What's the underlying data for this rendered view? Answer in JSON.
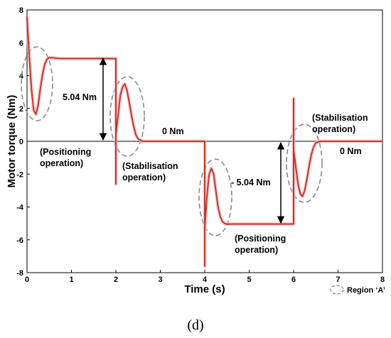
{
  "chart_data": {
    "type": "line",
    "title": "",
    "xlabel": "Time (s)",
    "ylabel": "Motor torque (Nm)",
    "xlim": [
      0,
      8
    ],
    "ylim": [
      -8,
      8
    ],
    "xticks": [
      "0",
      "1",
      "2",
      "3",
      "4",
      "5",
      "6",
      "7",
      "8"
    ],
    "yticks": [
      "8",
      "6",
      "4",
      "2",
      "0",
      "-2",
      "-4",
      "-6",
      "-8"
    ],
    "grid": false,
    "series": [
      {
        "name": "",
        "color": "#c0392b",
        "x": [
          0,
          0.05,
          0.1,
          0.15,
          0.2,
          0.25,
          0.3,
          0.35,
          0.4,
          0.45,
          0.5,
          0.6,
          0.7,
          0.8,
          1.0,
          1.5,
          2.0,
          2.0,
          2.0,
          2.05,
          2.1,
          2.15,
          2.2,
          2.25,
          2.3,
          2.35,
          2.4,
          2.45,
          2.5,
          2.6,
          2.7,
          3.0,
          3.5,
          4.0,
          4.0,
          4.0,
          4.05,
          4.1,
          4.15,
          4.2,
          4.25,
          4.3,
          4.35,
          4.4,
          4.45,
          4.5,
          4.6,
          4.7,
          5.0,
          5.5,
          6.0,
          6.0,
          6.0,
          6.05,
          6.1,
          6.15,
          6.2,
          6.25,
          6.3,
          6.35,
          6.4,
          6.45,
          6.5,
          6.6,
          6.7,
          7.0,
          8.0
        ],
        "y": [
          7.6,
          5.2,
          3.2,
          1.9,
          1.65,
          2.2,
          3.2,
          4.1,
          4.7,
          5.0,
          5.1,
          5.08,
          5.05,
          5.04,
          5.04,
          5.04,
          5.04,
          -2.6,
          0.4,
          1.6,
          2.8,
          3.3,
          3.5,
          3.1,
          2.4,
          1.6,
          0.9,
          0.4,
          0.15,
          0.0,
          0.0,
          0.0,
          0.0,
          0.0,
          -7.6,
          -5.3,
          -3.3,
          -2.0,
          -1.65,
          -2.0,
          -3.0,
          -4.0,
          -4.6,
          -4.9,
          -5.0,
          -5.05,
          -5.04,
          -5.04,
          -5.04,
          -5.04,
          -5.04,
          2.6,
          -0.5,
          -1.6,
          -2.6,
          -3.2,
          -3.35,
          -3.0,
          -2.3,
          -1.5,
          -0.8,
          -0.35,
          -0.1,
          0.0,
          0.0,
          0.0,
          0.0
        ]
      }
    ],
    "annotations": {
      "pos_5_04": "5.04 Nm",
      "zero_1": "0 Nm",
      "neg_5_04": "- 5.04 Nm",
      "zero_2": "0 Nm",
      "positioning_1_line1": "(Positioning",
      "positioning_1_line2": "operation)",
      "stabilisation_1_line1": "(Stabilisation",
      "stabilisation_1_line2": "operation)",
      "positioning_2_line1": "(Positioning",
      "positioning_2_line2": "operation)",
      "stabilisation_2_line1": "(Stabilisation",
      "stabilisation_2_line2": "operation)",
      "legend_region": "Region ‘A’"
    }
  },
  "caption": "(d)"
}
